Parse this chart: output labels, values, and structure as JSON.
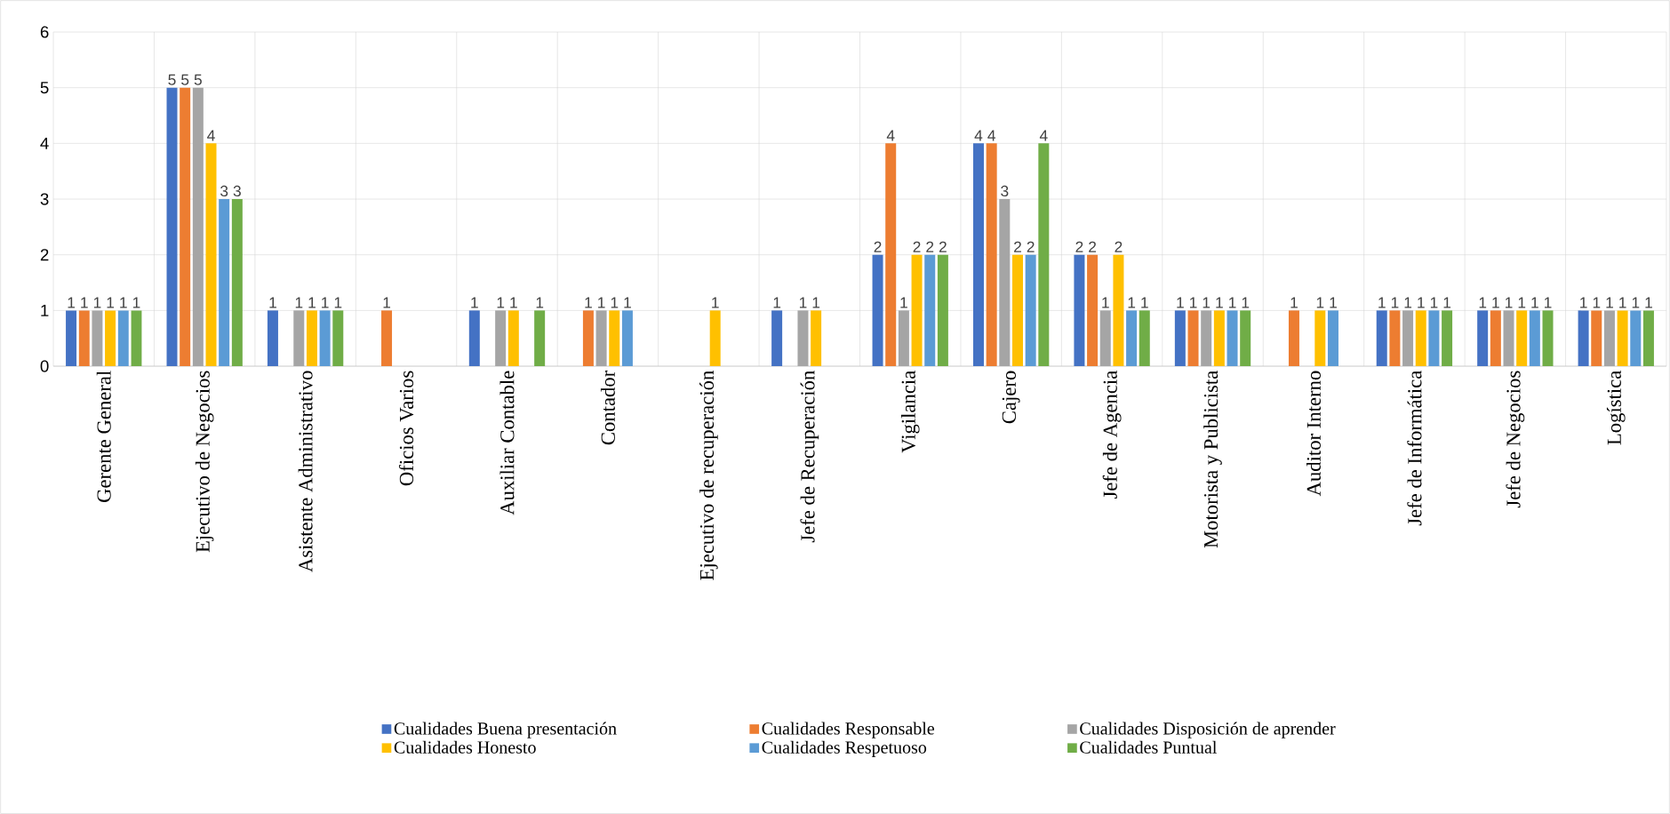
{
  "chart_data": {
    "type": "bar",
    "categories": [
      "Gerente General",
      "Ejecutivo de Negocios",
      "Asistente Administrativo",
      "Oficios Varios",
      "Auxiliar Contable",
      "Contador",
      "Ejecutivo de recuperación",
      "Jefe de Recuperación",
      "Vigilancia",
      "Cajero",
      "Jefe de Agencia",
      "Motorista y Publicista",
      "Auditor Interno",
      "Jefe de Informática",
      "Jefe de Negocios",
      "Logística"
    ],
    "series": [
      {
        "name": "Cualidades Buena presentación",
        "color": "#4472c4",
        "values": [
          1,
          5,
          1,
          null,
          1,
          null,
          null,
          1,
          2,
          4,
          2,
          1,
          null,
          1,
          1,
          1
        ]
      },
      {
        "name": "Cualidades Responsable",
        "color": "#ed7d31",
        "values": [
          1,
          5,
          null,
          1,
          null,
          1,
          null,
          null,
          4,
          4,
          2,
          1,
          1,
          1,
          1,
          1
        ]
      },
      {
        "name": "Cualidades Disposición de aprender",
        "color": "#a5a5a5",
        "values": [
          1,
          5,
          1,
          null,
          1,
          1,
          null,
          1,
          1,
          3,
          1,
          1,
          null,
          1,
          1,
          1
        ]
      },
      {
        "name": "Cualidades Honesto",
        "color": "#ffc000",
        "values": [
          1,
          4,
          1,
          null,
          1,
          1,
          1,
          1,
          2,
          2,
          2,
          1,
          1,
          1,
          1,
          1
        ]
      },
      {
        "name": "Cualidades Respetuoso",
        "color": "#5b9bd5",
        "values": [
          1,
          3,
          1,
          null,
          null,
          1,
          null,
          null,
          2,
          2,
          1,
          1,
          1,
          1,
          1,
          1
        ]
      },
      {
        "name": "Cualidades Puntual",
        "color": "#70ad47",
        "values": [
          1,
          3,
          1,
          null,
          1,
          null,
          null,
          null,
          2,
          4,
          1,
          1,
          null,
          1,
          1,
          1
        ]
      }
    ],
    "ylim": [
      0,
      6
    ],
    "yticks": [
      0,
      1,
      2,
      3,
      4,
      5,
      6
    ],
    "grid": true,
    "legend": "bottom",
    "data_labels": true
  }
}
